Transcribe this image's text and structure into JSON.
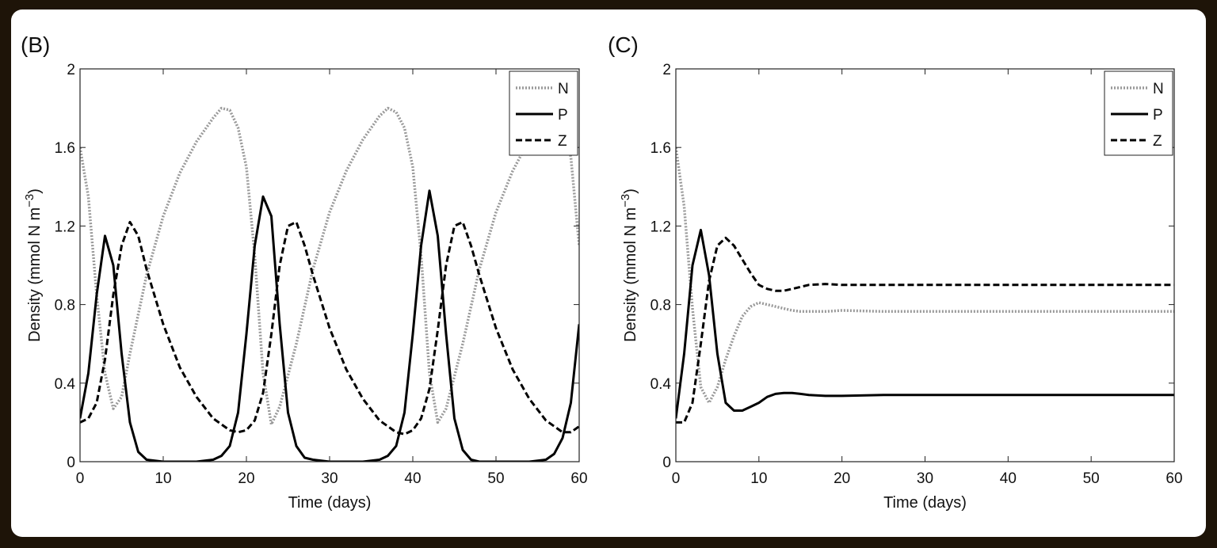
{
  "colors": {
    "frame_background": "#1e1408",
    "panel_background": "#ffffff",
    "N": "#9a9a9a",
    "P": "#000000",
    "Z": "#000000"
  },
  "chart_data": [
    {
      "type": "line",
      "panel_label": "(B)",
      "xlabel": "Time (days)",
      "ylabel": "Density (mmol N m",
      "ylabel_exponent": "−3",
      "ylabel_close": ")",
      "xlim": [
        0,
        60
      ],
      "ylim": [
        0,
        2
      ],
      "xticks": [
        0,
        10,
        20,
        30,
        40,
        50,
        60
      ],
      "xtick_labels": [
        "0",
        "10",
        "20",
        "30",
        "40",
        "50",
        "60"
      ],
      "yticks": [
        0,
        0.4,
        0.8,
        1.2,
        1.6,
        2
      ],
      "ytick_labels": [
        "0",
        "0.4",
        "0.8",
        "1.2",
        "1.6",
        "2"
      ],
      "legend_position": "top-right",
      "grid": false,
      "series": [
        {
          "name": "N",
          "style": "dotted",
          "x": [
            0,
            1,
            2,
            3,
            4,
            5,
            6,
            8,
            10,
            12,
            14,
            16,
            17,
            18,
            19,
            20,
            21,
            22,
            23,
            24,
            26,
            28,
            30,
            32,
            34,
            36,
            37,
            38,
            39,
            40,
            41,
            42,
            43,
            44,
            46,
            48,
            50,
            52,
            54,
            56,
            57,
            58,
            59,
            60
          ],
          "y": [
            1.6,
            1.35,
            0.85,
            0.45,
            0.27,
            0.33,
            0.55,
            0.95,
            1.25,
            1.47,
            1.63,
            1.75,
            1.8,
            1.79,
            1.7,
            1.5,
            1.05,
            0.45,
            0.19,
            0.28,
            0.6,
            0.98,
            1.27,
            1.48,
            1.64,
            1.76,
            1.8,
            1.78,
            1.7,
            1.5,
            1.05,
            0.45,
            0.2,
            0.27,
            0.6,
            0.98,
            1.27,
            1.48,
            1.64,
            1.76,
            1.8,
            1.78,
            1.55,
            1.1
          ]
        },
        {
          "name": "P",
          "style": "solid",
          "x": [
            0,
            1,
            2,
            3,
            4,
            5,
            6,
            7,
            8,
            10,
            12,
            14,
            16,
            17,
            18,
            19,
            20,
            21,
            22,
            23,
            24,
            25,
            26,
            27,
            28,
            30,
            32,
            34,
            36,
            37,
            38,
            39,
            40,
            41,
            42,
            43,
            44,
            45,
            46,
            47,
            48,
            50,
            52,
            54,
            56,
            57,
            58,
            59,
            60
          ],
          "y": [
            0.22,
            0.45,
            0.85,
            1.15,
            1.0,
            0.55,
            0.2,
            0.05,
            0.01,
            0.0,
            0.0,
            0.0,
            0.01,
            0.03,
            0.08,
            0.25,
            0.65,
            1.1,
            1.35,
            1.25,
            0.7,
            0.25,
            0.08,
            0.02,
            0.01,
            0.0,
            0.0,
            0.0,
            0.01,
            0.03,
            0.08,
            0.25,
            0.65,
            1.1,
            1.38,
            1.15,
            0.65,
            0.22,
            0.06,
            0.01,
            0.0,
            0.0,
            0.0,
            0.0,
            0.01,
            0.04,
            0.12,
            0.3,
            0.7
          ]
        },
        {
          "name": "Z",
          "style": "dashed",
          "x": [
            0,
            1,
            2,
            3,
            4,
            5,
            6,
            7,
            8,
            10,
            12,
            14,
            16,
            18,
            19,
            20,
            21,
            22,
            23,
            24,
            25,
            26,
            27,
            28,
            30,
            32,
            34,
            36,
            38,
            39,
            40,
            41,
            42,
            43,
            44,
            45,
            46,
            47,
            48,
            50,
            52,
            54,
            56,
            58,
            59,
            60
          ],
          "y": [
            0.2,
            0.22,
            0.3,
            0.52,
            0.85,
            1.1,
            1.22,
            1.15,
            0.98,
            0.7,
            0.48,
            0.33,
            0.22,
            0.16,
            0.15,
            0.16,
            0.21,
            0.35,
            0.65,
            1.0,
            1.2,
            1.22,
            1.1,
            0.95,
            0.68,
            0.47,
            0.32,
            0.21,
            0.15,
            0.14,
            0.16,
            0.22,
            0.37,
            0.67,
            1.0,
            1.2,
            1.22,
            1.1,
            0.95,
            0.68,
            0.47,
            0.32,
            0.21,
            0.15,
            0.15,
            0.18
          ]
        }
      ]
    },
    {
      "type": "line",
      "panel_label": "(C)",
      "xlabel": "Time (days)",
      "ylabel": "Density (mmol N m",
      "ylabel_exponent": "−3",
      "ylabel_close": ")",
      "xlim": [
        0,
        60
      ],
      "ylim": [
        0,
        2
      ],
      "xticks": [
        0,
        10,
        20,
        30,
        40,
        50,
        60
      ],
      "xtick_labels": [
        "0",
        "10",
        "20",
        "30",
        "40",
        "50",
        "60"
      ],
      "yticks": [
        0,
        0.4,
        0.8,
        1.2,
        1.6,
        2
      ],
      "ytick_labels": [
        "0",
        "0.4",
        "0.8",
        "1.2",
        "1.6",
        "2"
      ],
      "legend_position": "top-right",
      "grid": false,
      "series": [
        {
          "name": "N",
          "style": "dotted",
          "x": [
            0,
            1,
            2,
            3,
            4,
            5,
            6,
            7,
            8,
            9,
            10,
            11,
            12,
            13,
            14,
            15,
            16,
            18,
            20,
            25,
            30,
            40,
            50,
            60
          ],
          "y": [
            1.6,
            1.3,
            0.78,
            0.38,
            0.3,
            0.38,
            0.52,
            0.64,
            0.74,
            0.79,
            0.81,
            0.8,
            0.79,
            0.78,
            0.77,
            0.765,
            0.765,
            0.765,
            0.77,
            0.765,
            0.765,
            0.765,
            0.765,
            0.765
          ]
        },
        {
          "name": "P",
          "style": "solid",
          "x": [
            0,
            1,
            2,
            3,
            4,
            5,
            6,
            7,
            8,
            9,
            10,
            11,
            12,
            13,
            14,
            15,
            16,
            18,
            20,
            25,
            30,
            40,
            50,
            60
          ],
          "y": [
            0.22,
            0.55,
            1.0,
            1.18,
            0.95,
            0.55,
            0.3,
            0.26,
            0.26,
            0.28,
            0.3,
            0.33,
            0.345,
            0.35,
            0.35,
            0.345,
            0.34,
            0.335,
            0.335,
            0.34,
            0.34,
            0.34,
            0.34,
            0.34
          ]
        },
        {
          "name": "Z",
          "style": "dashed",
          "x": [
            0,
            1,
            2,
            3,
            4,
            5,
            6,
            7,
            8,
            9,
            10,
            11,
            12,
            13,
            14,
            15,
            16,
            18,
            20,
            25,
            30,
            40,
            50,
            60
          ],
          "y": [
            0.2,
            0.2,
            0.3,
            0.6,
            0.92,
            1.1,
            1.14,
            1.1,
            1.03,
            0.96,
            0.9,
            0.88,
            0.87,
            0.87,
            0.88,
            0.89,
            0.9,
            0.905,
            0.9,
            0.9,
            0.9,
            0.9,
            0.9,
            0.9
          ]
        }
      ]
    }
  ]
}
